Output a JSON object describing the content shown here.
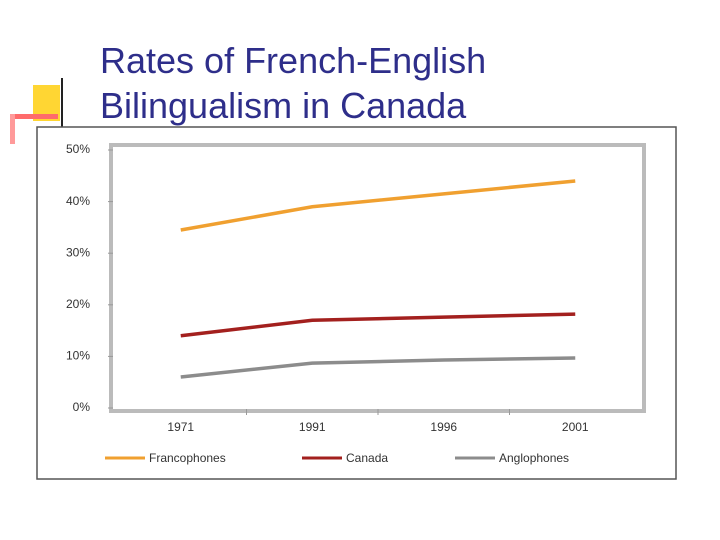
{
  "chart_data": {
    "type": "line",
    "title": "Rates of French-English Bilingualism in Canada",
    "categories": [
      "1971",
      "1991",
      "1996",
      "2001"
    ],
    "series": [
      {
        "name": "Francophones",
        "color": "#f0a030",
        "values": [
          34.5,
          39,
          41.5,
          44
        ]
      },
      {
        "name": "Canada",
        "color": "#a3201e",
        "values": [
          14,
          17,
          17.6,
          18.2
        ]
      },
      {
        "name": "Anglophones",
        "color": "#8c8c8c",
        "values": [
          6,
          8.7,
          9.3,
          9.7
        ]
      }
    ],
    "ylim": [
      0,
      50
    ],
    "yticks": [
      {
        "value": 0,
        "label": "0%"
      },
      {
        "value": 10,
        "label": "10%"
      },
      {
        "value": 20,
        "label": "20%"
      },
      {
        "value": 30,
        "label": "30%"
      },
      {
        "value": 40,
        "label": "40%"
      },
      {
        "value": 50,
        "label": "50%"
      }
    ],
    "grid": false,
    "legend": "bottom"
  }
}
